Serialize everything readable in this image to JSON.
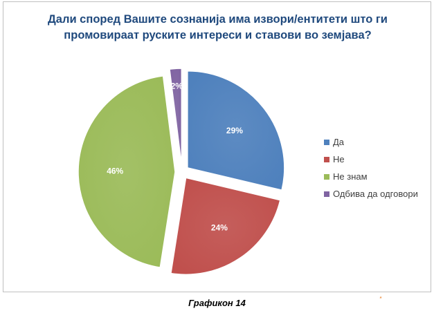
{
  "chart_data": {
    "type": "pie",
    "title_lines": [
      "Дали според Вашите сознанија има извори/ентитети што ги",
      "промовираат руските интереси и ставови во земјава?"
    ],
    "categories": [
      "Да",
      "Не",
      "Не знам",
      "Одбива да одговори"
    ],
    "values": [
      29,
      24,
      46,
      2
    ],
    "data_labels": [
      "29%",
      "24%",
      "46%",
      "2%"
    ],
    "colors": [
      "#4f81bd",
      "#c0504d",
      "#9bbb59",
      "#8064a2"
    ],
    "exploded": true,
    "legend_position": "right"
  },
  "caption": "Графикон 14",
  "corner_mark": "″"
}
